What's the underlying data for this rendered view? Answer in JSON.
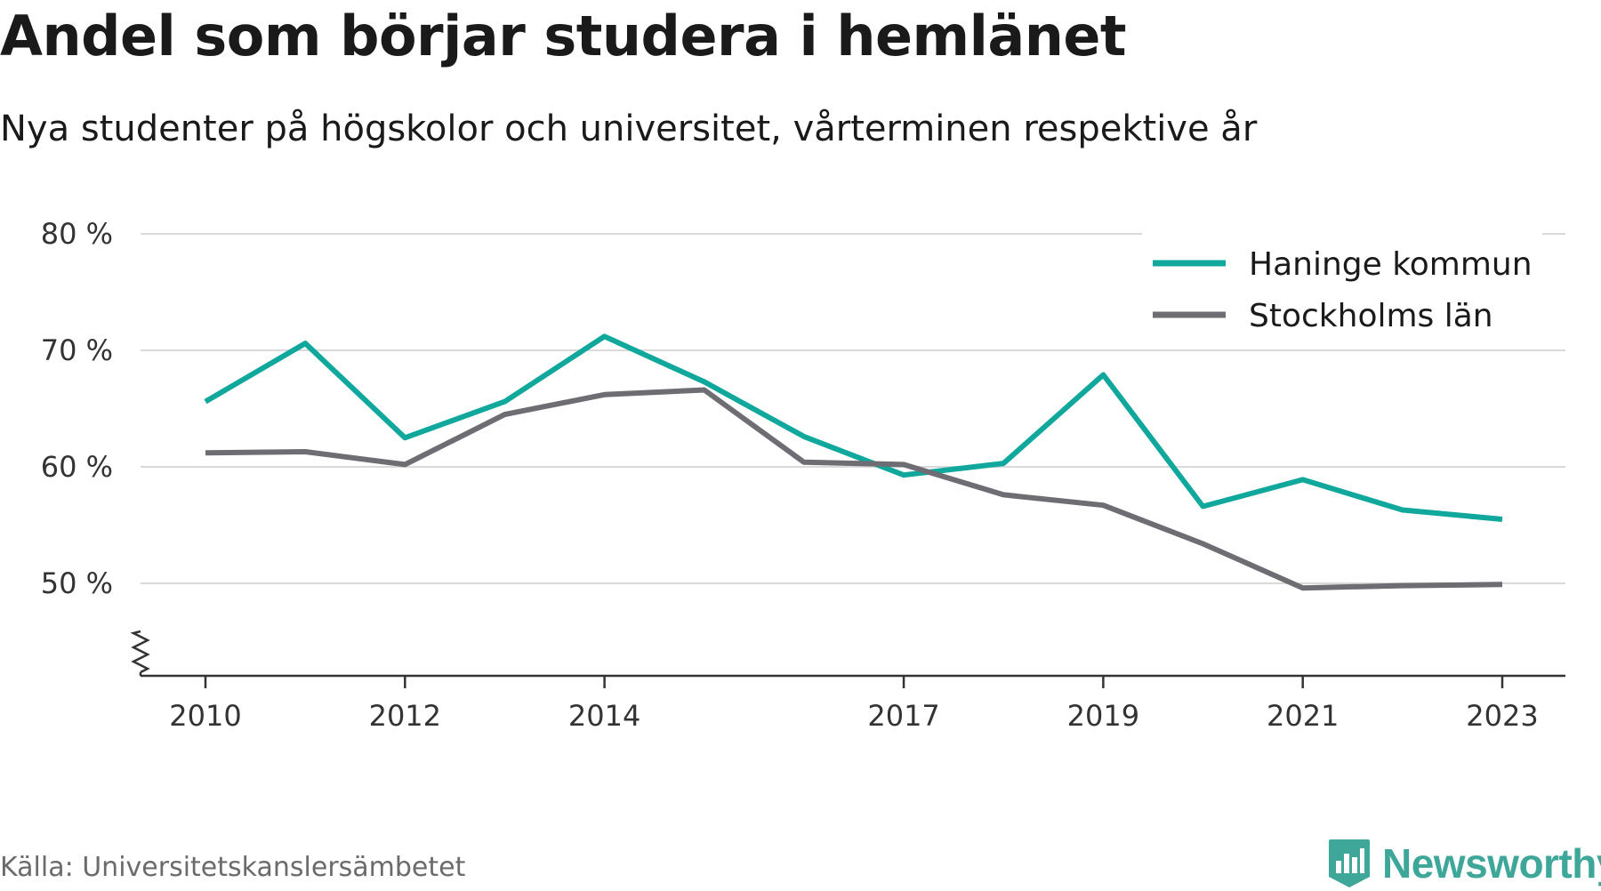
{
  "header": {
    "title": "Andel som börjar studera i hemlänet",
    "subtitle": "Nya studenter på högskolor och universitet, vårterminen respektive år"
  },
  "footer": {
    "source": "Källa: Universitetskanslersämbetet",
    "brand": "Newsworthy",
    "brand_icon": "bar-chart-badge-icon"
  },
  "colors": {
    "haninge": "#10a89c",
    "stockholm": "#6e6d73",
    "grid": "#d9d9d9",
    "axis": "#333333"
  },
  "chart_data": {
    "type": "line",
    "title": "Andel som börjar studera i hemlänet",
    "subtitle": "Nya studenter på högskolor och universitet, vårterminen respektive år",
    "xlabel": "",
    "ylabel": "",
    "x": [
      2010,
      2011,
      2012,
      2013,
      2014,
      2015,
      2016,
      2017,
      2018,
      2019,
      2020,
      2021,
      2022,
      2023
    ],
    "x_tick_labels": [
      "2010",
      "2012",
      "2014",
      "2017",
      "2019",
      "2021",
      "2023"
    ],
    "y_tick_labels": [
      "80 %",
      "70 %",
      "60 %",
      "50 %"
    ],
    "y_ticks": [
      80,
      70,
      60,
      50
    ],
    "ylim": [
      42,
      80
    ],
    "y_axis_break": true,
    "grid": true,
    "legend_position": "top-right",
    "series": [
      {
        "name": "Haninge kommun",
        "color": "#10a89c",
        "values": [
          65.6,
          70.6,
          62.5,
          65.6,
          71.2,
          67.3,
          62.6,
          59.3,
          60.3,
          67.9,
          56.6,
          58.9,
          56.3,
          55.5
        ]
      },
      {
        "name": "Stockholms län",
        "color": "#6e6d73",
        "values": [
          61.2,
          61.3,
          60.2,
          64.5,
          66.2,
          66.6,
          60.4,
          60.2,
          57.6,
          56.7,
          53.4,
          49.6,
          49.8,
          49.9
        ]
      }
    ]
  }
}
